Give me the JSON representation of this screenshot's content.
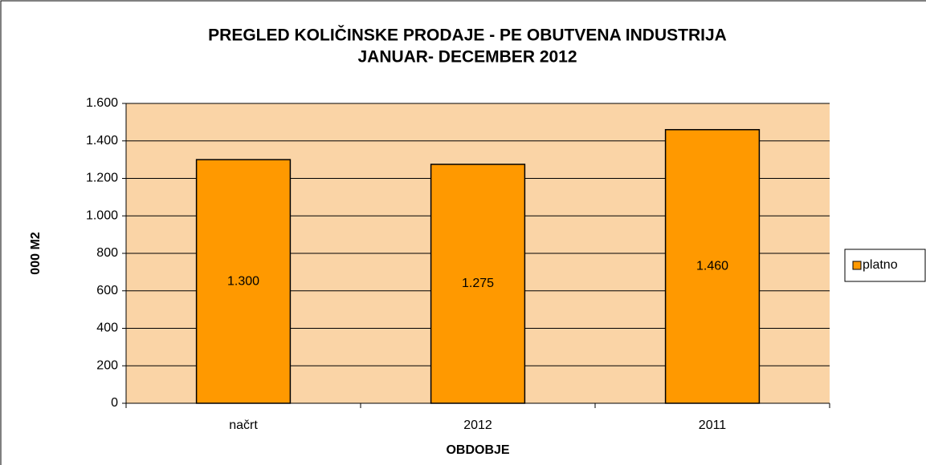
{
  "chart_data": {
    "type": "bar",
    "title": [
      "PREGLED KOLIČINSKE PRODAJE - PE OBUTVENA INDUSTRIJA",
      "JANUAR- DECEMBER 2012"
    ],
    "x_label": "OBDOBJE",
    "y_label": "000 M2",
    "categories": [
      "načrt",
      "2012",
      "2011"
    ],
    "series": [
      {
        "name": "platno",
        "color": "#ff9900",
        "values": [
          1300,
          1275,
          1460
        ],
        "value_labels": [
          "1.300",
          "1.275",
          "1.460"
        ]
      }
    ],
    "ylim": [
      0,
      1600
    ],
    "yticks": [
      0,
      200,
      400,
      600,
      800,
      {
        "value": 1000,
        "label": "1.000"
      },
      {
        "value": 1200,
        "label": "1.200"
      },
      {
        "value": 1400,
        "label": "1.400"
      },
      {
        "value": 1600,
        "label": "1.600"
      }
    ],
    "grid": true,
    "legend": "right",
    "plot_background": "#fad4a6"
  }
}
